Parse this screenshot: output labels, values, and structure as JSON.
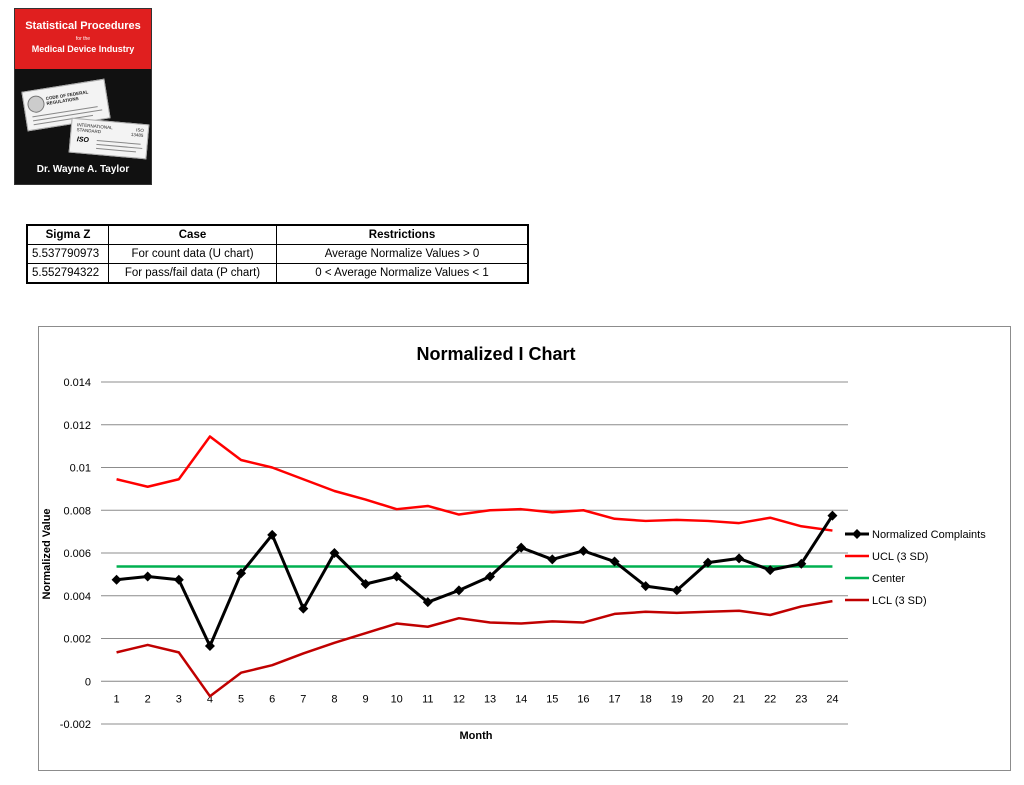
{
  "book": {
    "title": "Statistical Procedures",
    "for": "for the",
    "subtitle": "Medical Device Industry",
    "doc1_heading": "CODE OF FEDERAL REGULATIONS",
    "doc2_heading": "INTERNATIONAL STANDARD",
    "doc2_number": "ISO 13485",
    "iso_logo": "ISO",
    "author": "Dr. Wayne A. Taylor"
  },
  "table": {
    "headers": [
      "Sigma Z",
      "Case",
      "Restrictions"
    ],
    "rows": [
      [
        "5.537790973",
        "For count data (U chart)",
        "Average Normalize Values > 0"
      ],
      [
        "5.552794322",
        "For pass/fail data (P chart)",
        "0 < Average Normalize Values < 1"
      ]
    ]
  },
  "chart_data": {
    "type": "line",
    "title": "Normalized  I Chart",
    "xlabel": "Month",
    "ylabel": "Normalized Value",
    "categories": [
      "1",
      "2",
      "3",
      "4",
      "5",
      "6",
      "7",
      "8",
      "9",
      "10",
      "11",
      "12",
      "13",
      "14",
      "15",
      "16",
      "17",
      "18",
      "19",
      "20",
      "21",
      "22",
      "23",
      "24"
    ],
    "ylim": [
      -0.002,
      0.014
    ],
    "yticks": [
      "-0.002",
      "0",
      "0.002",
      "0.004",
      "0.006",
      "0.008",
      "0.01",
      "0.012",
      "0.014"
    ],
    "grid": true,
    "legend_position": "right",
    "series": [
      {
        "name": "Normalized Complaints",
        "color": "#000000",
        "marker": "diamond",
        "values": [
          0.00475,
          0.0049,
          0.00475,
          0.00165,
          0.00505,
          0.00685,
          0.0034,
          0.006,
          0.00455,
          0.0049,
          0.0037,
          0.00425,
          0.0049,
          0.00625,
          0.0057,
          0.0061,
          0.0056,
          0.00445,
          0.00425,
          0.00555,
          0.00575,
          0.0052,
          0.0055,
          0.00775
        ]
      },
      {
        "name": "UCL (3 SD)",
        "color": "#ff0000",
        "values": [
          0.00945,
          0.0091,
          0.00945,
          0.01145,
          0.01035,
          0.01,
          0.00945,
          0.0089,
          0.0085,
          0.00805,
          0.0082,
          0.0078,
          0.008,
          0.00805,
          0.0079,
          0.008,
          0.0076,
          0.0075,
          0.00755,
          0.0075,
          0.0074,
          0.00765,
          0.00725,
          0.00705
        ]
      },
      {
        "name": "Center",
        "color": "#00b050",
        "values": [
          0.00537,
          0.00537,
          0.00537,
          0.00537,
          0.00537,
          0.00537,
          0.00537,
          0.00537,
          0.00537,
          0.00537,
          0.00537,
          0.00537,
          0.00537,
          0.00537,
          0.00537,
          0.00537,
          0.00537,
          0.00537,
          0.00537,
          0.00537,
          0.00537,
          0.00537,
          0.00537,
          0.00537
        ]
      },
      {
        "name": "LCL (3 SD)",
        "color": "#c00000",
        "values": [
          0.00135,
          0.0017,
          0.00135,
          -0.0007,
          0.0004,
          0.00075,
          0.0013,
          0.0018,
          0.00225,
          0.0027,
          0.00255,
          0.00295,
          0.00275,
          0.0027,
          0.0028,
          0.00275,
          0.00315,
          0.00325,
          0.0032,
          0.00325,
          0.0033,
          0.0031,
          0.0035,
          0.00375
        ]
      }
    ]
  }
}
